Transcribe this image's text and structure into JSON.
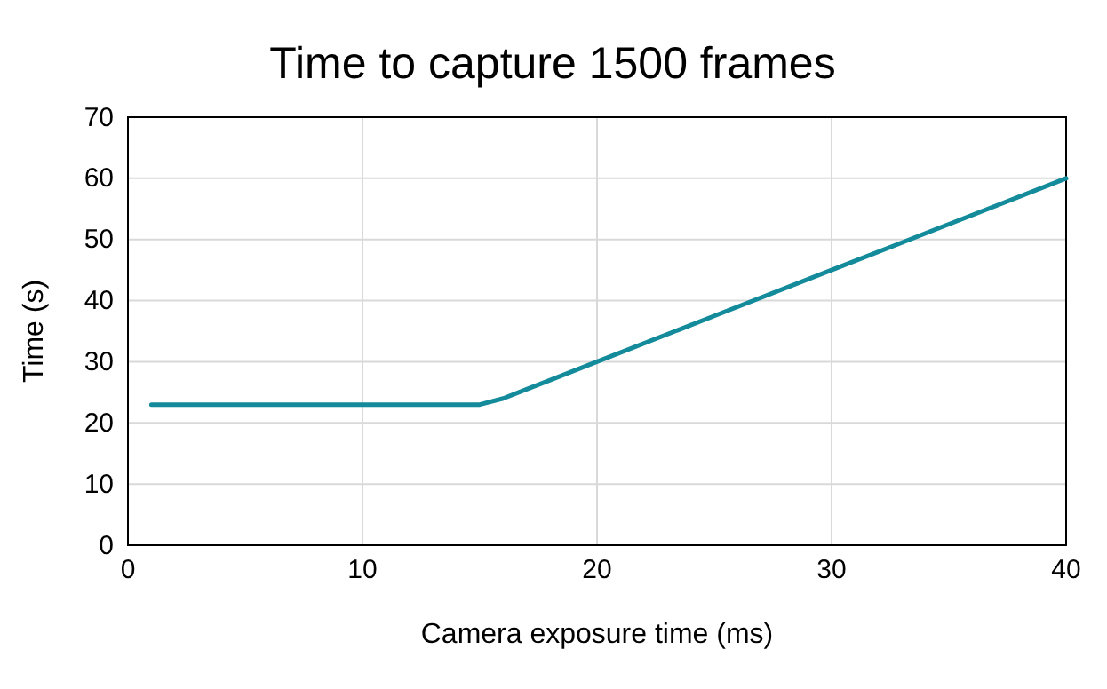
{
  "chart_data": {
    "type": "line",
    "title": "Time to capture 1500 frames",
    "xlabel": "Camera exposure time (ms)",
    "ylabel": "Time (s)",
    "x": [
      1,
      5,
      10,
      15,
      16,
      17,
      18,
      20,
      25,
      30,
      35,
      40
    ],
    "series": [
      {
        "color": "#138b9b",
        "values": [
          23,
          23,
          23,
          23,
          24,
          25.5,
          27,
          30,
          37.5,
          45,
          52.5,
          60
        ]
      }
    ],
    "xlim": [
      0,
      40
    ],
    "xticks": [
      0,
      10,
      20,
      30,
      40
    ],
    "ylim": [
      0,
      70
    ],
    "yticks": [
      0,
      10,
      20,
      30,
      40,
      50,
      60,
      70
    ],
    "grid": true,
    "marker": "none",
    "line_style": "solid"
  }
}
